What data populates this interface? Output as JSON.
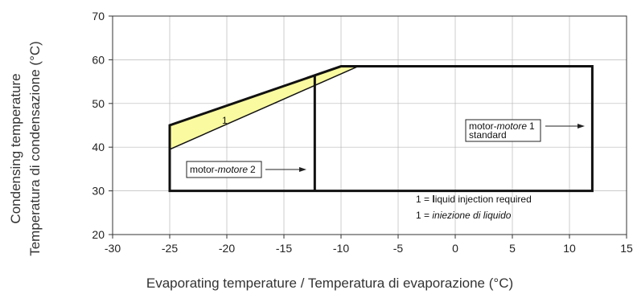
{
  "chart_data": {
    "type": "area",
    "xlabel": "Evaporating temperature / Temperatura di evaporazione (°C)",
    "ylabel_lines": [
      "Condensing temperature",
      "Temperatura di condensazione (°C)"
    ],
    "xlim": [
      -30,
      15
    ],
    "ylim": [
      20,
      70
    ],
    "x_ticks": [
      -30,
      -25,
      -20,
      -15,
      -10,
      -5,
      0,
      5,
      10,
      15
    ],
    "y_ticks": [
      20,
      30,
      40,
      50,
      60,
      70
    ],
    "grid": true,
    "liquid_injection_region": {
      "label": "1",
      "color": "#fafaa0",
      "points": [
        [
          -25,
          45
        ],
        [
          -10,
          58.5
        ],
        [
          -8.5,
          58.5
        ],
        [
          -25,
          39.5
        ]
      ]
    },
    "envelopes": [
      {
        "name_prefix": "motor-",
        "name_italic": "motore",
        "name_suffix": "1",
        "line2": "standard",
        "points": [
          [
            -25,
            30
          ],
          [
            -25,
            45
          ],
          [
            -10,
            58.5
          ],
          [
            12,
            58.5
          ],
          [
            12,
            30
          ]
        ]
      },
      {
        "name_prefix": "motor-",
        "name_italic": "motore",
        "name_suffix": "2",
        "points": [
          [
            -12.3,
            30
          ],
          [
            -12.3,
            56.5
          ]
        ]
      }
    ],
    "legend_lines": [
      {
        "prefix": "1 = ",
        "bold": "l",
        "text": "iquid injection required",
        "italic": false
      },
      {
        "prefix": "1 = ",
        "bold": "",
        "text": "iniezione  di  liquido",
        "italic": true
      }
    ]
  }
}
